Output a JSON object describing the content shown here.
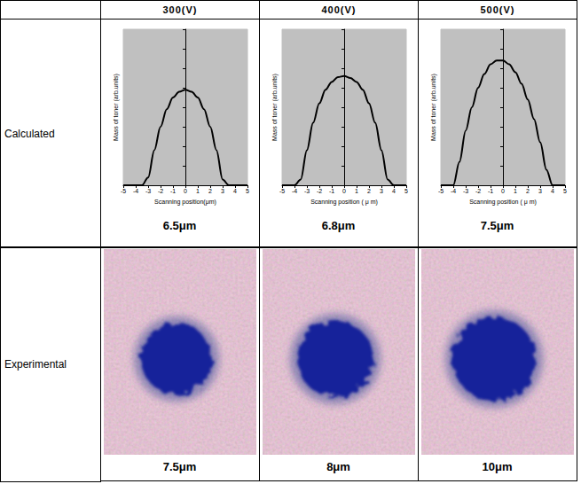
{
  "table": {
    "columns": [
      "300(V)",
      "400(V)",
      "500(V)"
    ],
    "rows": [
      {
        "label": "Calculated",
        "values": [
          "6.5μm",
          "6.8μm",
          "7.5μm"
        ]
      },
      {
        "label": "Experimental",
        "values": [
          "7.5μm",
          "8μm",
          "10μm"
        ]
      }
    ]
  },
  "chart_data": [
    {
      "type": "line",
      "xlabel": "Scanning position(μm)",
      "ylabel": "Mass of toner (arb.units)",
      "x": [
        -5,
        -4,
        -3.5,
        -3,
        -2.5,
        -2,
        -1.5,
        -1,
        -0.5,
        0,
        0.5,
        1,
        1.5,
        2,
        2.5,
        3,
        3.5,
        4,
        5
      ],
      "values": [
        0,
        0,
        0,
        0.4,
        1.8,
        3.0,
        3.9,
        4.5,
        4.8,
        4.9,
        4.8,
        4.5,
        3.9,
        3.0,
        1.8,
        0.3,
        0,
        0,
        0
      ],
      "color": "#000000",
      "xlim": [
        -5,
        5
      ],
      "xticks": [
        -5,
        -4,
        -3,
        -2,
        -1,
        0,
        1,
        2,
        3,
        4,
        5
      ],
      "ylim": [
        0,
        8
      ],
      "yticks": [
        0,
        1,
        2,
        3,
        4,
        5,
        6,
        7,
        8
      ],
      "tick_labels": "x",
      "grid": false
    },
    {
      "type": "line",
      "xlabel": "Scanning position ( μ m)",
      "ylabel": "Mass of toner (arb.units)",
      "x": [
        -5,
        -4,
        -3.5,
        -3,
        -2.5,
        -2,
        -1.5,
        -1,
        -0.5,
        0,
        0.5,
        1,
        1.5,
        2,
        2.5,
        3,
        3.5,
        4,
        5
      ],
      "values": [
        0,
        0,
        0.3,
        1.8,
        3.2,
        4.2,
        4.9,
        5.3,
        5.55,
        5.6,
        5.5,
        5.3,
        4.9,
        4.2,
        3.2,
        1.8,
        0.3,
        0,
        0
      ],
      "color": "#000000",
      "xlim": [
        -5,
        5
      ],
      "xticks": [
        -5,
        -4,
        -3,
        -2,
        -1,
        0,
        1,
        2,
        3,
        4,
        5
      ],
      "ylim": [
        0,
        8
      ],
      "yticks": [
        0,
        1,
        2,
        3,
        4,
        5,
        6,
        7,
        8
      ],
      "tick_labels": "x",
      "grid": false
    },
    {
      "type": "line",
      "xlabel": "Scanning position ( μ m)",
      "ylabel": "Mass of toner (arb.units)",
      "x": [
        -5,
        -4,
        -3.5,
        -3,
        -2.5,
        -2,
        -1.5,
        -1,
        -0.5,
        0,
        0.5,
        1,
        1.5,
        2,
        2.5,
        3,
        3.5,
        4,
        5
      ],
      "values": [
        0,
        0,
        1.2,
        2.8,
        4.0,
        5.0,
        5.7,
        6.2,
        6.4,
        6.4,
        6.2,
        5.8,
        5.2,
        4.4,
        3.4,
        2.2,
        0.8,
        0,
        0
      ],
      "color": "#000000",
      "xlim": [
        -5,
        5
      ],
      "xticks": [
        -5,
        -4,
        -3,
        -2,
        -1,
        0,
        1,
        2,
        3,
        4,
        5
      ],
      "ylim": [
        0,
        8
      ],
      "yticks": [
        0,
        1,
        2,
        3,
        4,
        5,
        6,
        7,
        8
      ],
      "tick_labels": "x",
      "grid": false
    }
  ]
}
